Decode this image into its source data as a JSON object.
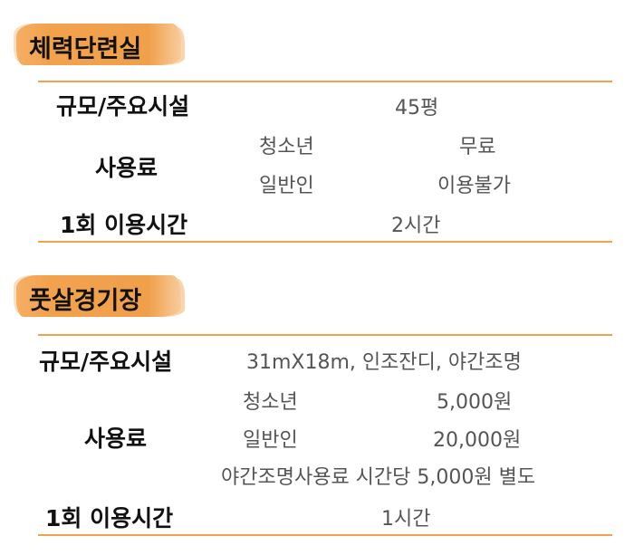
{
  "sections": [
    {
      "title": "체력단련실",
      "rows": {
        "facilities_label": "규모/주요시설",
        "facilities_value": "45평",
        "fee_label": "사용료",
        "fee_items": [
          {
            "group": "청소년",
            "price": "무료"
          },
          {
            "group": "일반인",
            "price": "이용불가"
          }
        ],
        "time_label": "1회  이용시간",
        "time_value": "2시간"
      }
    },
    {
      "title": "풋살경기장",
      "rows": {
        "facilities_label": "규모/주요시설",
        "facilities_value": "31mX18m,  인조잔디,  야간조명",
        "fee_label": "사용료",
        "fee_items": [
          {
            "group": "청소년",
            "price": "5,000원"
          },
          {
            "group": "일반인",
            "price": "20,000원"
          }
        ],
        "fee_note": "야간조명사용료  시간당  5,000원  별도",
        "time_label": "1회  이용시간",
        "time_value": "1시간"
      }
    }
  ],
  "colors": {
    "accent": "#f0a24c",
    "label": "#111111",
    "value": "#555555"
  }
}
